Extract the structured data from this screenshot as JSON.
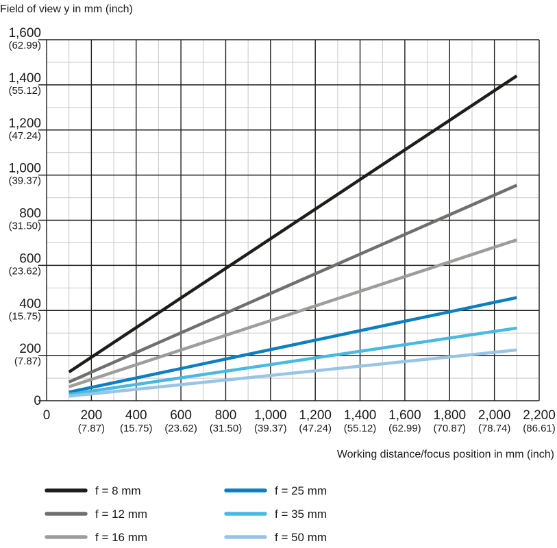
{
  "chart_data": {
    "type": "line",
    "ylabel": "Field of view y in mm (inch)",
    "xlabel": "Working distance/focus position in mm (inch)",
    "xlim": [
      0,
      2200
    ],
    "ylim": [
      0,
      1600
    ],
    "grid": true,
    "legend_position": "bottom",
    "x_ticks": [
      {
        "value": 0,
        "label": "0",
        "sub": ""
      },
      {
        "value": 200,
        "label": "200",
        "sub": "(7.87)"
      },
      {
        "value": 400,
        "label": "400",
        "sub": "(15.75)"
      },
      {
        "value": 600,
        "label": "600",
        "sub": "(23.62)"
      },
      {
        "value": 800,
        "label": "800",
        "sub": "(31.50)"
      },
      {
        "value": 1000,
        "label": "1,000",
        "sub": "(39.37)"
      },
      {
        "value": 1200,
        "label": "1,200",
        "sub": "(47.24)"
      },
      {
        "value": 1400,
        "label": "1,400",
        "sub": "(55.12)"
      },
      {
        "value": 1600,
        "label": "1,600",
        "sub": "(62.99)"
      },
      {
        "value": 1800,
        "label": "1,800",
        "sub": "(70.87)"
      },
      {
        "value": 2000,
        "label": "2,000",
        "sub": "(78.74)"
      },
      {
        "value": 2200,
        "label": "2,200",
        "sub": "(86.61)"
      }
    ],
    "y_ticks": [
      {
        "value": 0,
        "label": "0",
        "sub": ""
      },
      {
        "value": 200,
        "label": "200",
        "sub": "(7.87)"
      },
      {
        "value": 400,
        "label": "400",
        "sub": "(15.75)"
      },
      {
        "value": 600,
        "label": "600",
        "sub": "(23.62)"
      },
      {
        "value": 800,
        "label": "800",
        "sub": "(31.50)"
      },
      {
        "value": 1000,
        "label": "1,000",
        "sub": "(39.37)"
      },
      {
        "value": 1200,
        "label": "1,200",
        "sub": "(47.24)"
      },
      {
        "value": 1400,
        "label": "1,400",
        "sub": "(55.12)"
      },
      {
        "value": 1600,
        "label": "1,600",
        "sub": "(62.99)"
      }
    ],
    "series": [
      {
        "name": "f = 8 mm",
        "color": "#1d1d1b",
        "x": [
          100,
          2100
        ],
        "y": [
          127,
          1440
        ]
      },
      {
        "name": "f = 12 mm",
        "color": "#6f6f6e",
        "x": [
          100,
          2100
        ],
        "y": [
          83,
          955
        ]
      },
      {
        "name": "f = 16 mm",
        "color": "#9d9d9c",
        "x": [
          100,
          2100
        ],
        "y": [
          62,
          713
        ]
      },
      {
        "name": "f = 25 mm",
        "color": "#0c7fc1",
        "x": [
          100,
          2100
        ],
        "y": [
          38,
          457
        ]
      },
      {
        "name": "f = 35 mm",
        "color": "#4ab9e2",
        "x": [
          100,
          2100
        ],
        "y": [
          28,
          322
        ]
      },
      {
        "name": "f = 50 mm",
        "color": "#98c4e6",
        "x": [
          100,
          2100
        ],
        "y": [
          20,
          225
        ]
      }
    ]
  }
}
